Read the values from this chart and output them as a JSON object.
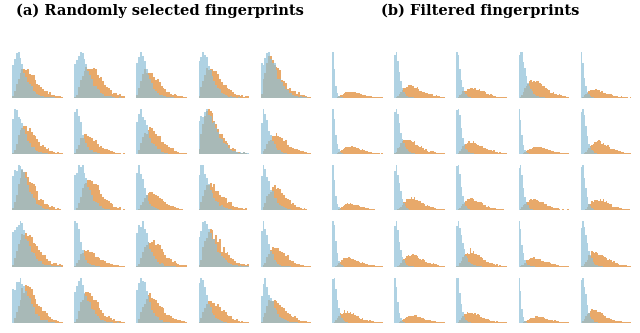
{
  "title_a": "(a) Randomly selected fingerprints",
  "title_b": "(b) Filtered fingerprints",
  "orange_color": "#E8A96A",
  "blue_color": "#8EC0D8",
  "n_rows": 5,
  "n_cols_per_panel": 5,
  "seed": 42,
  "fig_width": 6.4,
  "fig_height": 3.33,
  "title_fontsize": 10.5,
  "title_fontweight": "bold"
}
